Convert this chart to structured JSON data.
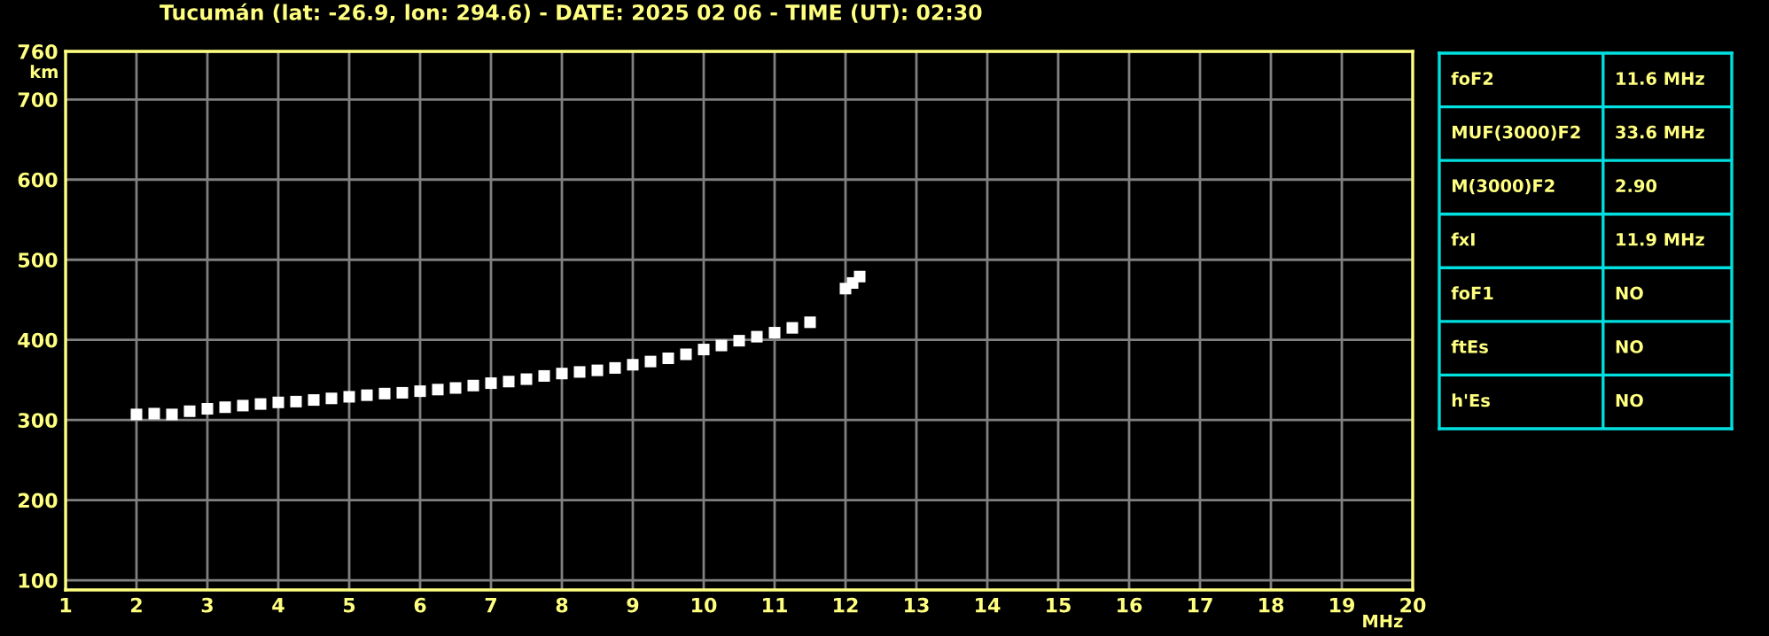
{
  "chart_data": [
    {
      "type": "scatter",
      "title": "Tucumán (lat: -26.9, lon: 294.6) - DATE: 2025 02 06 - TIME (UT): 02:30",
      "xlabel": "MHz",
      "ylabel": "km",
      "xlim": [
        1,
        20
      ],
      "ylim": [
        88,
        760
      ],
      "xticks": [
        1,
        2,
        3,
        4,
        5,
        6,
        7,
        8,
        9,
        10,
        11,
        12,
        13,
        14,
        15,
        16,
        17,
        18,
        19,
        20
      ],
      "yticks": [
        100,
        200,
        300,
        400,
        500,
        600,
        700,
        760
      ],
      "grid": true,
      "marker": "square",
      "series": [
        {
          "color": "#ffffff",
          "x": [
            2.0,
            2.25,
            2.5,
            2.75,
            3.0,
            3.25,
            3.5,
            3.75,
            4.0,
            4.25,
            4.5,
            4.75,
            5.0,
            5.25,
            5.5,
            5.75,
            6.0,
            6.25,
            6.5,
            6.75,
            7.0,
            7.25,
            7.5,
            7.75,
            8.0,
            8.25,
            8.5,
            8.75,
            9.0,
            9.25,
            9.5,
            9.75,
            10.0,
            10.25,
            10.5,
            10.75,
            11.0,
            11.25,
            11.5,
            12.0,
            12.1,
            12.2
          ],
          "values": [
            307,
            308,
            307,
            311,
            314,
            316,
            318,
            320,
            322,
            323,
            325,
            327,
            329,
            331,
            333,
            334,
            336,
            338,
            340,
            343,
            346,
            348,
            351,
            355,
            358,
            360,
            362,
            365,
            369,
            373,
            377,
            382,
            388,
            393,
            399,
            404,
            409,
            415,
            422,
            464,
            471,
            479
          ]
        }
      ]
    },
    {
      "type": "other",
      "categories": [
        "foF2",
        "MUF(3000)F2",
        "M(3000)F2",
        "fxI",
        "foF1",
        "ftEs",
        "h'Es"
      ],
      "value_labels": [
        "11.6 MHz",
        "33.6 MHz",
        "2.90",
        "11.9 MHz",
        "NO",
        "NO",
        "NO"
      ]
    }
  ]
}
